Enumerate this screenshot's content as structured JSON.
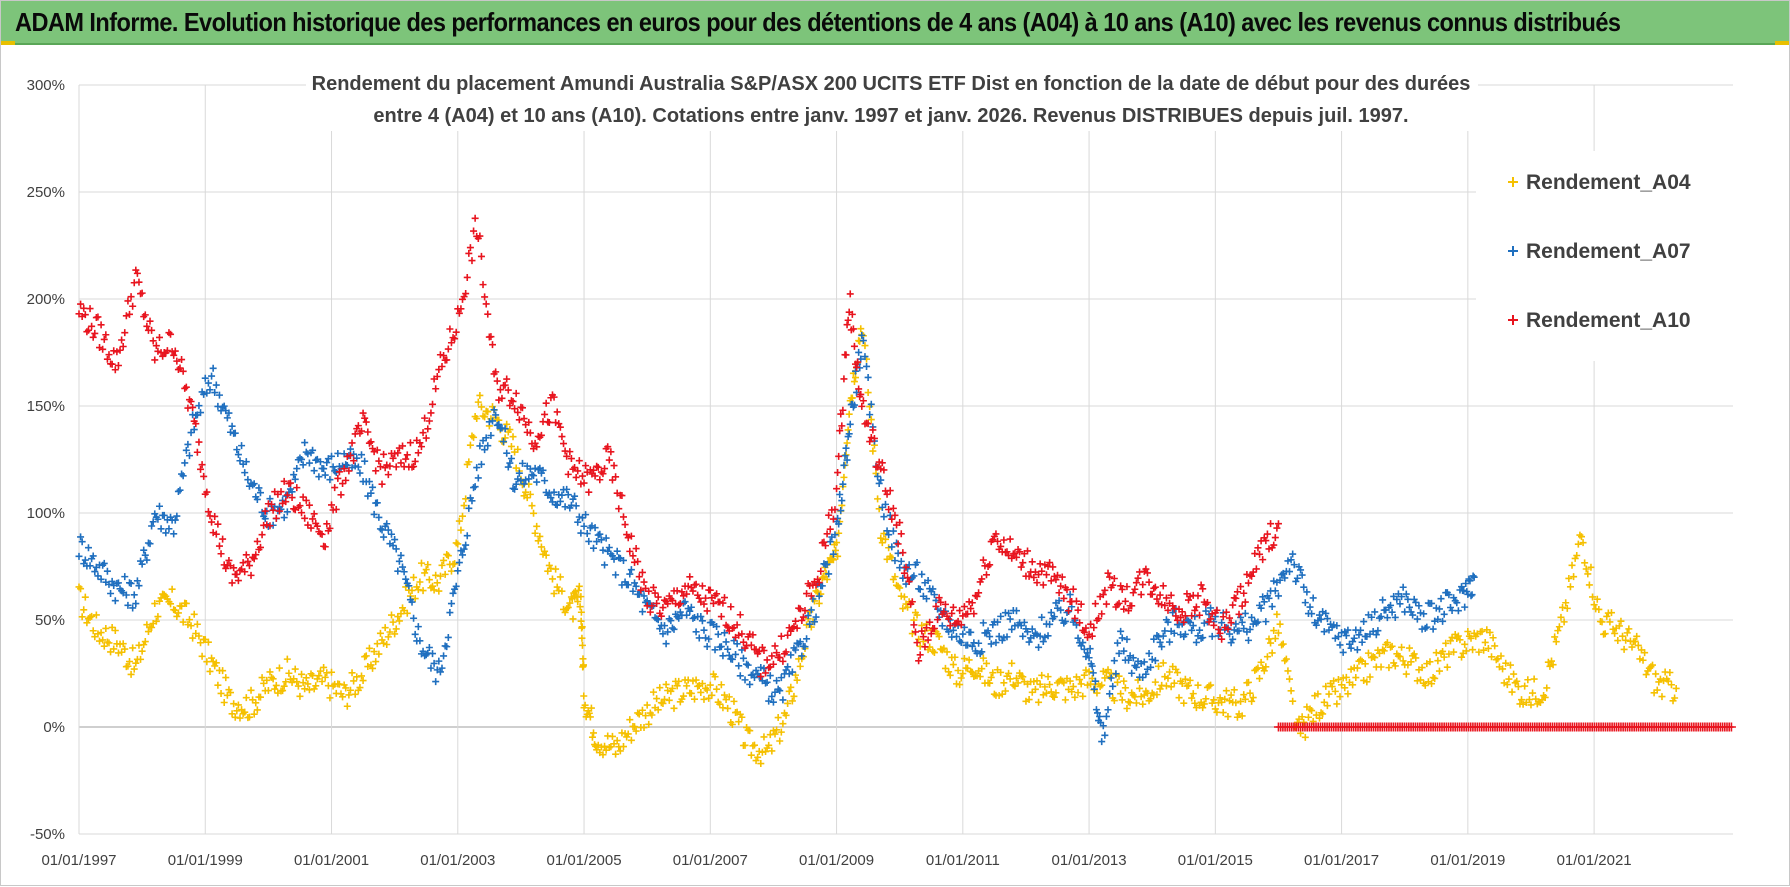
{
  "banner": {
    "title": "ADAM Informe. Evolution historique des performances en euros pour des détentions de 4 ans (A04) à 10 ans (A10) avec les revenus connus distribués"
  },
  "colors": {
    "banner_bg": "#7dc47a",
    "A04": "#f5c000",
    "A07": "#1f6fbf",
    "A10": "#e8141e",
    "grid": "#d9d9d9"
  },
  "chart_data": {
    "type": "scatter",
    "title_line1": "Rendement du placement Amundi Australia S&P/ASX 200 UCITS ETF Dist en fonction de la date de début pour des durées",
    "title_line2": "entre 4 (A04) et 10 ans (A10).  Cotations entre janv. 1997 et janv. 2026. Revenus DISTRIBUES depuis juil. 1997.",
    "xlabel": "",
    "ylabel": "",
    "ylim": [
      -50,
      300
    ],
    "y_ticks": [
      "300%",
      "250%",
      "200%",
      "150%",
      "100%",
      "50%",
      "0%",
      "-50%"
    ],
    "x_ticks": [
      "01/01/1997",
      "01/01/1999",
      "01/01/2001",
      "01/01/2003",
      "01/01/2005",
      "01/01/2007",
      "01/01/2009",
      "01/01/2011",
      "01/01/2013",
      "01/01/2015",
      "01/01/2017",
      "01/01/2019",
      "01/01/2021"
    ],
    "xlim": [
      1997.0,
      2023.2
    ],
    "grid": true,
    "legend_position": "right",
    "series": [
      {
        "name": "Rendement_A04",
        "x": [
          1997.0,
          1997.3,
          1997.6,
          1997.9,
          1998.2,
          1998.5,
          1998.8,
          1999.1,
          1999.4,
          1999.7,
          2000.0,
          2000.3,
          2000.6,
          2000.9,
          2001.2,
          2001.5,
          2001.8,
          2002.1,
          2002.4,
          2002.7,
          2003.0,
          2003.3,
          2003.6,
          2003.9,
          2004.2,
          2004.5,
          2004.8,
          2004.95,
          2005.0,
          2005.2,
          2005.5,
          2005.8,
          2006.1,
          2006.4,
          2006.7,
          2007.0,
          2007.3,
          2007.6,
          2007.9,
          2008.2,
          2008.5,
          2008.8,
          2009.0,
          2009.2,
          2009.4,
          2009.7,
          2010.0,
          2010.3,
          2010.6,
          2010.9,
          2011.2,
          2011.5,
          2011.8,
          2012.1,
          2012.4,
          2012.7,
          2013.0,
          2013.3,
          2013.6,
          2013.9,
          2014.2,
          2014.5,
          2014.8,
          2015.1,
          2015.4,
          2015.7,
          2016.0,
          2016.3,
          2016.6,
          2016.9,
          2017.2,
          2017.5,
          2017.8,
          2018.1,
          2018.4,
          2018.7,
          2019.0,
          2019.3,
          2019.6,
          2019.9,
          2020.2,
          2020.5,
          2020.8,
          2021.1,
          2021.4,
          2021.7,
          2022.0,
          2022.3
        ],
        "y": [
          60,
          45,
          40,
          28,
          55,
          58,
          48,
          30,
          12,
          10,
          20,
          25,
          18,
          22,
          15,
          25,
          40,
          55,
          70,
          68,
          85,
          150,
          145,
          130,
          100,
          70,
          55,
          60,
          15,
          -5,
          -10,
          2,
          10,
          15,
          18,
          20,
          10,
          -8,
          -12,
          5,
          40,
          70,
          80,
          150,
          190,
          95,
          60,
          45,
          40,
          25,
          30,
          20,
          25,
          15,
          20,
          18,
          22,
          20,
          15,
          15,
          25,
          18,
          14,
          12,
          10,
          25,
          48,
          -4,
          10,
          15,
          22,
          30,
          35,
          30,
          25,
          35,
          40,
          42,
          25,
          15,
          18,
          50,
          90,
          50,
          45,
          35,
          20,
          18
        ]
      },
      {
        "name": "Rendement_A07",
        "x": [
          1997.0,
          1997.3,
          1997.6,
          1997.9,
          1998.2,
          1998.5,
          1998.8,
          1999.1,
          1999.4,
          1999.7,
          2000.0,
          2000.3,
          2000.6,
          2000.9,
          2001.2,
          2001.5,
          2001.8,
          2002.1,
          2002.4,
          2002.7,
          2003.0,
          2003.3,
          2003.6,
          2003.9,
          2004.2,
          2004.5,
          2004.8,
          2005.1,
          2005.4,
          2005.7,
          2006.0,
          2006.3,
          2006.6,
          2006.9,
          2007.2,
          2007.5,
          2007.8,
          2008.1,
          2008.4,
          2008.7,
          2009.0,
          2009.2,
          2009.4,
          2009.7,
          2010.0,
          2010.3,
          2010.6,
          2010.9,
          2011.2,
          2011.5,
          2011.8,
          2012.1,
          2012.4,
          2012.7,
          2013.0,
          2013.2,
          2013.5,
          2013.8,
          2014.1,
          2014.4,
          2014.7,
          2015.0,
          2015.3,
          2015.6,
          2015.9,
          2016.2,
          2016.5,
          2016.8,
          2017.1,
          2017.4,
          2017.7,
          2018.0,
          2018.3,
          2018.6,
          2018.9,
          2019.1
        ],
        "y": [
          85,
          75,
          65,
          62,
          100,
          95,
          140,
          165,
          140,
          115,
          100,
          105,
          130,
          120,
          125,
          120,
          95,
          75,
          40,
          25,
          70,
          120,
          150,
          115,
          120,
          110,
          105,
          90,
          80,
          70,
          55,
          45,
          55,
          45,
          40,
          30,
          22,
          15,
          35,
          60,
          90,
          140,
          180,
          110,
          75,
          70,
          55,
          45,
          40,
          45,
          50,
          40,
          50,
          55,
          35,
          -5,
          40,
          25,
          40,
          50,
          45,
          50,
          45,
          48,
          60,
          80,
          55,
          45,
          40,
          45,
          55,
          60,
          50,
          55,
          60,
          70
        ]
      },
      {
        "name": "Rendement_A10",
        "x": [
          1997.0,
          1997.3,
          1997.6,
          1997.9,
          1998.2,
          1998.5,
          1998.8,
          1999.1,
          1999.4,
          1999.7,
          2000.0,
          2000.3,
          2000.6,
          2000.9,
          2001.2,
          2001.5,
          2001.8,
          2002.1,
          2002.4,
          2002.7,
          2003.0,
          2003.3,
          2003.6,
          2003.9,
          2004.2,
          2004.5,
          2004.8,
          2005.1,
          2005.4,
          2005.7,
          2006.0,
          2006.3,
          2006.6,
          2006.9,
          2007.2,
          2007.5,
          2007.8,
          2008.1,
          2008.4,
          2008.7,
          2009.0,
          2009.2,
          2009.4,
          2009.7,
          2010.0,
          2010.3,
          2010.6,
          2010.9,
          2011.2,
          2011.5,
          2011.8,
          2012.1,
          2012.4,
          2012.7,
          2013.0,
          2013.3,
          2013.6,
          2013.9,
          2014.2,
          2014.5,
          2014.8,
          2015.1,
          2015.4,
          2015.7,
          2016.0
        ],
        "y": [
          195,
          185,
          170,
          210,
          175,
          180,
          145,
          100,
          70,
          75,
          100,
          110,
          100,
          90,
          120,
          140,
          120,
          125,
          130,
          165,
          190,
          235,
          160,
          155,
          135,
          150,
          120,
          115,
          125,
          90,
          60,
          55,
          65,
          60,
          55,
          45,
          30,
          35,
          50,
          70,
          110,
          200,
          150,
          120,
          90,
          35,
          55,
          50,
          60,
          90,
          80,
          75,
          70,
          60,
          45,
          65,
          60,
          70,
          60,
          55,
          60,
          45,
          60,
          80,
          95
        ]
      },
      {
        "name": "Rendement_A10",
        "segment": "zero-tail",
        "x_range": [
          2016.0,
          2023.2
        ],
        "y": 0
      }
    ]
  },
  "legend": [
    {
      "label": "Rendement_A04",
      "key": "A04"
    },
    {
      "label": "Rendement_A07",
      "key": "A07"
    },
    {
      "label": "Rendement_A10",
      "key": "A10"
    }
  ]
}
